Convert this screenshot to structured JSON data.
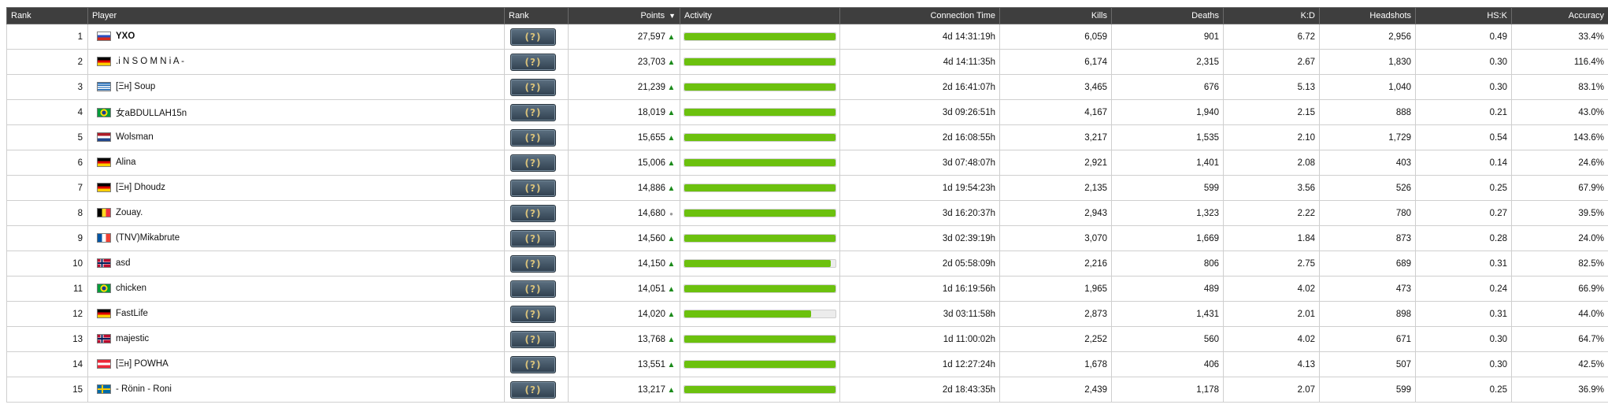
{
  "headers": {
    "rank": "Rank",
    "player": "Player",
    "rank_image": "Rank",
    "points": "Points",
    "activity": "Activity",
    "connection_time": "Connection Time",
    "kills": "Kills",
    "deaths": "Deaths",
    "kd": "K:D",
    "headshots": "Headshots",
    "hsk": "HS:K",
    "accuracy": "Accuracy"
  },
  "sort_indicator": "▼",
  "rank_badge_glyph": "(?)",
  "colors": {
    "header_bg": "#3e3e3e",
    "activity_bar": "#6cc10e",
    "trend_up": "#1a8a1a"
  },
  "rows": [
    {
      "rank": "1",
      "flag": "russia",
      "player": "YXO",
      "points": "27,597",
      "trend": "up",
      "activity": 1.0,
      "time": "4d 14:31:19h",
      "kills": "6,059",
      "deaths": "901",
      "kd": "6.72",
      "hs": "2,956",
      "hsk": "0.49",
      "acc": "33.4%"
    },
    {
      "rank": "2",
      "flag": "germany",
      "player": ".i N S O M N i A -",
      "points": "23,703",
      "trend": "up",
      "activity": 1.0,
      "time": "4d 14:11:35h",
      "kills": "6,174",
      "deaths": "2,315",
      "kd": "2.67",
      "hs": "1,830",
      "hsk": "0.30",
      "acc": "116.4%"
    },
    {
      "rank": "3",
      "flag": "greece",
      "player": "[Ξн] Soup",
      "points": "21,239",
      "trend": "up",
      "activity": 1.0,
      "time": "2d 16:41:07h",
      "kills": "3,465",
      "deaths": "676",
      "kd": "5.13",
      "hs": "1,040",
      "hsk": "0.30",
      "acc": "83.1%"
    },
    {
      "rank": "4",
      "flag": "brazil",
      "player": "女aBDULLAH15n",
      "points": "18,019",
      "trend": "up",
      "activity": 1.0,
      "time": "3d 09:26:51h",
      "kills": "4,167",
      "deaths": "1,940",
      "kd": "2.15",
      "hs": "888",
      "hsk": "0.21",
      "acc": "43.0%"
    },
    {
      "rank": "5",
      "flag": "netherlands",
      "player": "Wolsman",
      "points": "15,655",
      "trend": "up",
      "activity": 1.0,
      "time": "2d 16:08:55h",
      "kills": "3,217",
      "deaths": "1,535",
      "kd": "2.10",
      "hs": "1,729",
      "hsk": "0.54",
      "acc": "143.6%"
    },
    {
      "rank": "6",
      "flag": "germany",
      "player": "Alina",
      "points": "15,006",
      "trend": "up",
      "activity": 1.0,
      "time": "3d 07:48:07h",
      "kills": "2,921",
      "deaths": "1,401",
      "kd": "2.08",
      "hs": "403",
      "hsk": "0.14",
      "acc": "24.6%"
    },
    {
      "rank": "7",
      "flag": "germany",
      "player": "[Ξн] Dhoudz",
      "points": "14,886",
      "trend": "up",
      "activity": 1.0,
      "time": "1d 19:54:23h",
      "kills": "2,135",
      "deaths": "599",
      "kd": "3.56",
      "hs": "526",
      "hsk": "0.25",
      "acc": "67.9%"
    },
    {
      "rank": "8",
      "flag": "belgium",
      "player": "Zouay.",
      "points": "14,680",
      "trend": "flat",
      "activity": 1.0,
      "time": "3d 16:20:37h",
      "kills": "2,943",
      "deaths": "1,323",
      "kd": "2.22",
      "hs": "780",
      "hsk": "0.27",
      "acc": "39.5%"
    },
    {
      "rank": "9",
      "flag": "france",
      "player": "(TNV)Mikabrute",
      "points": "14,560",
      "trend": "up",
      "activity": 1.0,
      "time": "3d 02:39:19h",
      "kills": "3,070",
      "deaths": "1,669",
      "kd": "1.84",
      "hs": "873",
      "hsk": "0.28",
      "acc": "24.0%"
    },
    {
      "rank": "10",
      "flag": "norway",
      "player": "asd",
      "points": "14,150",
      "trend": "up",
      "activity": 0.97,
      "time": "2d 05:58:09h",
      "kills": "2,216",
      "deaths": "806",
      "kd": "2.75",
      "hs": "689",
      "hsk": "0.31",
      "acc": "82.5%"
    },
    {
      "rank": "11",
      "flag": "brazil",
      "player": "chicken",
      "points": "14,051",
      "trend": "up",
      "activity": 1.0,
      "time": "1d 16:19:56h",
      "kills": "1,965",
      "deaths": "489",
      "kd": "4.02",
      "hs": "473",
      "hsk": "0.24",
      "acc": "66.9%"
    },
    {
      "rank": "12",
      "flag": "germany",
      "player": "FastLife",
      "points": "14,020",
      "trend": "up",
      "activity": 0.84,
      "time": "3d 03:11:58h",
      "kills": "2,873",
      "deaths": "1,431",
      "kd": "2.01",
      "hs": "898",
      "hsk": "0.31",
      "acc": "44.0%"
    },
    {
      "rank": "13",
      "flag": "norway",
      "player": "majestic",
      "points": "13,768",
      "trend": "up",
      "activity": 1.0,
      "time": "1d 11:00:02h",
      "kills": "2,252",
      "deaths": "560",
      "kd": "4.02",
      "hs": "671",
      "hsk": "0.30",
      "acc": "64.7%"
    },
    {
      "rank": "14",
      "flag": "austria",
      "player": "[Ξн] POWHA",
      "points": "13,551",
      "trend": "up",
      "activity": 1.0,
      "time": "1d 12:27:24h",
      "kills": "1,678",
      "deaths": "406",
      "kd": "4.13",
      "hs": "507",
      "hsk": "0.30",
      "acc": "42.5%"
    },
    {
      "rank": "15",
      "flag": "sweden",
      "player": "- Rönin - Roni",
      "points": "13,217",
      "trend": "up",
      "activity": 1.0,
      "time": "2d 18:43:35h",
      "kills": "2,439",
      "deaths": "1,178",
      "kd": "2.07",
      "hs": "599",
      "hsk": "0.25",
      "acc": "36.9%"
    }
  ]
}
